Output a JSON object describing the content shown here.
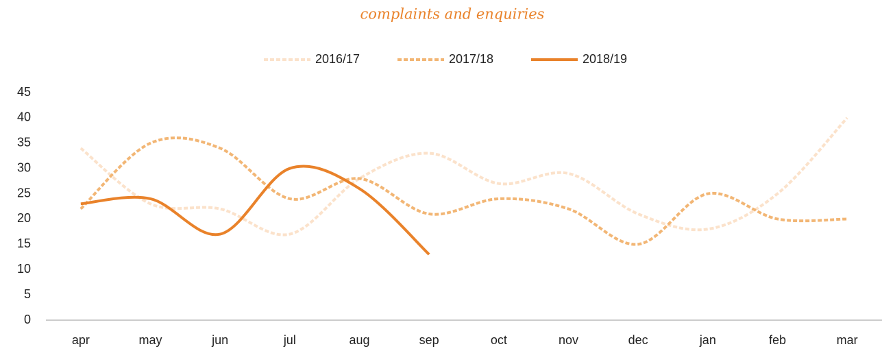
{
  "chart_data": {
    "type": "line",
    "title": "complaints and enquiries",
    "categories": [
      "apr",
      "may",
      "jun",
      "jul",
      "aug",
      "sep",
      "oct",
      "nov",
      "dec",
      "jan",
      "feb",
      "mar"
    ],
    "series": [
      {
        "name": "2016/17",
        "color": "#fbe2cb",
        "style": "dotted",
        "values": [
          34,
          23,
          22,
          17,
          28,
          33,
          27,
          29,
          21,
          18,
          25,
          40
        ]
      },
      {
        "name": "2017/18",
        "color": "#f2b675",
        "style": "dotted",
        "values": [
          22,
          35,
          34,
          24,
          28,
          21,
          24,
          22,
          15,
          25,
          20,
          20
        ]
      },
      {
        "name": "2018/19",
        "color": "#e9822a",
        "style": "solid",
        "values": [
          23,
          24,
          17,
          30,
          26,
          13,
          null,
          null,
          null,
          null,
          null,
          null
        ]
      }
    ],
    "ylim": [
      0,
      45
    ],
    "yticks": [
      0,
      5,
      10,
      15,
      20,
      25,
      30,
      35,
      40,
      45
    ],
    "grid": false,
    "legend": "top",
    "smooth": true
  }
}
